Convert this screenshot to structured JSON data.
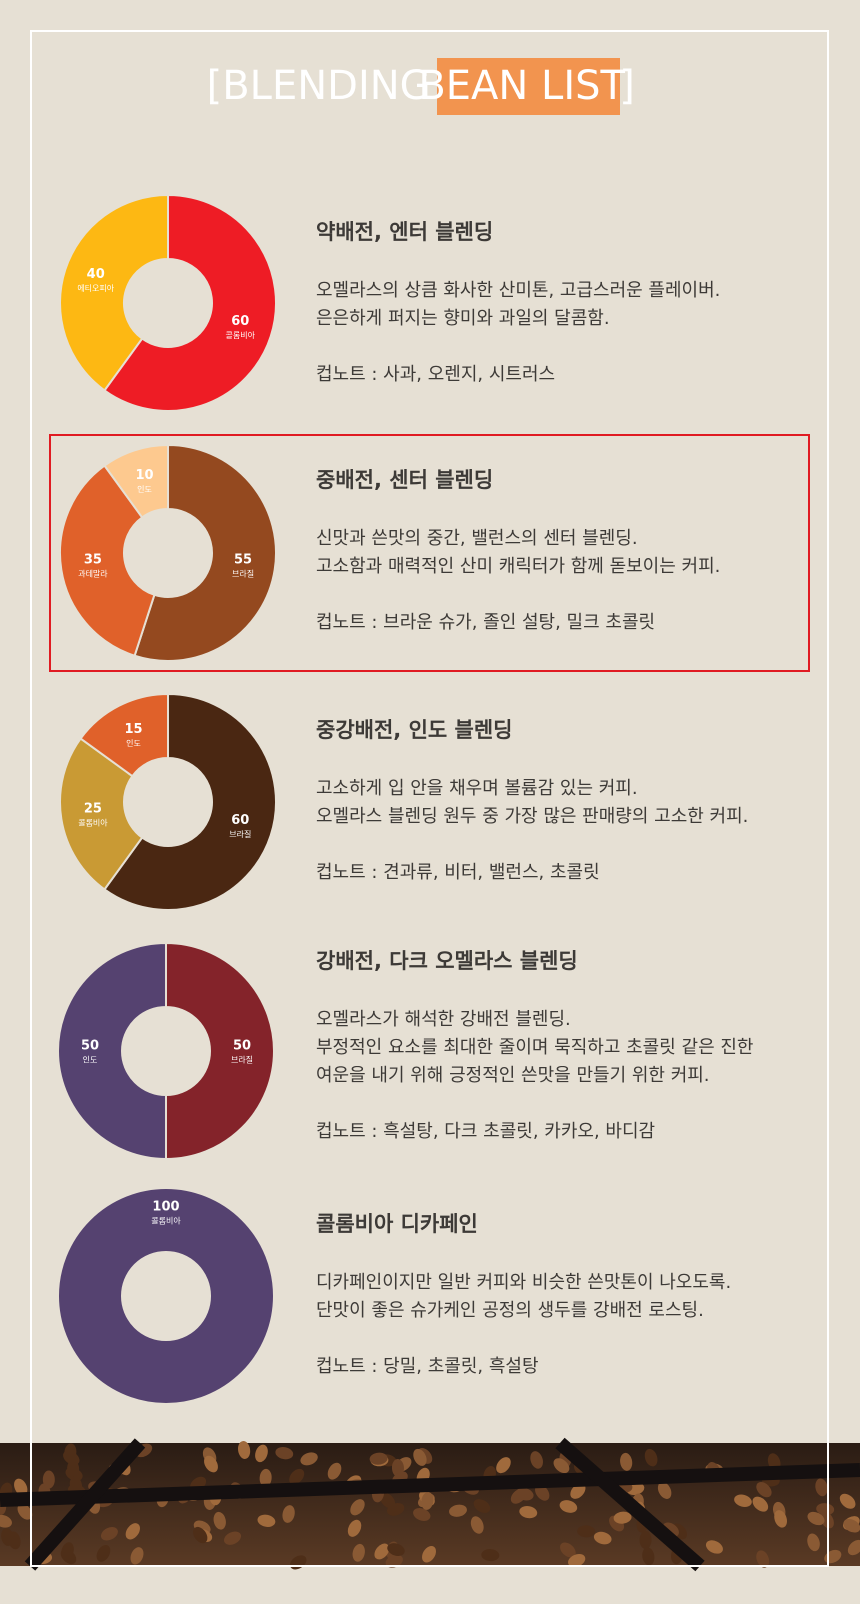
{
  "header": {
    "title_open": "[BLENDING",
    "title_highlight": "BEAN LIST",
    "title_close": "]"
  },
  "chart_data": [
    {
      "type": "pie",
      "categories": [
        "콜롬비아",
        "에티오피아"
      ],
      "values": [
        60,
        40
      ],
      "colors": [
        "#ee1c25",
        "#fdb813"
      ]
    },
    {
      "type": "pie",
      "categories": [
        "브라질",
        "과테말라",
        "인도"
      ],
      "values": [
        55,
        35,
        10
      ],
      "colors": [
        "#94491f",
        "#e0612a",
        "#fdc98f"
      ]
    },
    {
      "type": "pie",
      "categories": [
        "브라질",
        "콜롬비아",
        "인도"
      ],
      "values": [
        60,
        25,
        15
      ],
      "colors": [
        "#4a2712",
        "#c99a34",
        "#e0612a"
      ]
    },
    {
      "type": "pie",
      "categories": [
        "브라질",
        "인도"
      ],
      "values": [
        50,
        50
      ],
      "colors": [
        "#84232a",
        "#554270"
      ]
    },
    {
      "type": "pie",
      "categories": [
        "콜롬비아"
      ],
      "values": [
        100
      ],
      "colors": [
        "#554270"
      ]
    }
  ],
  "blends": [
    {
      "title": "약배전, 엔터 블렌딩",
      "lines": [
        "오멜라스의 상큼 화사한 산미톤, 고급스러운 플레이버.",
        "은은하게 퍼지는 향미와 과일의 달콤함."
      ],
      "note": "컵노트 : 사과, 오렌지, 시트러스"
    },
    {
      "title": "중배전, 센터 블렌딩",
      "lines": [
        "신맛과 쓴맛의 중간, 밸런스의 센터 블렌딩.",
        "고소함과 매력적인 산미 캐릭터가 함께 돋보이는 커피."
      ],
      "note": "컵노트 : 브라운 슈가, 졸인 설탕, 밀크 초콜릿"
    },
    {
      "title": "중강배전, 인도 블렌딩",
      "lines": [
        "고소하게 입 안을 채우며 볼륨감 있는 커피.",
        "오멜라스 블렌딩 원두 중 가장 많은 판매량의 고소한 커피."
      ],
      "note": "컵노트 : 견과류, 비터, 밸런스, 초콜릿"
    },
    {
      "title": "강배전, 다크 오멜라스 블렌딩",
      "lines": [
        "오멜라스가 해석한 강배전 블렌딩.",
        "부정적인 요소를 최대한 줄이며 묵직하고 초콜릿 같은 진한",
        "여운을 내기 위해 긍정적인 쓴맛을 만들기 위한 커피."
      ],
      "note": "컵노트 : 흑설탕, 다크 초콜릿, 카카오, 바디감"
    },
    {
      "title": "콜롬비아 디카페인",
      "lines": [
        "디카페인이지만 일반 커피와 비슷한 쓴맛톤이 나오도록.",
        "단맛이 좋은 슈가케인 공정의 생두를 강배전 로스팅."
      ],
      "note": "컵노트 : 당밀, 초콜릿, 흑설탕"
    }
  ]
}
